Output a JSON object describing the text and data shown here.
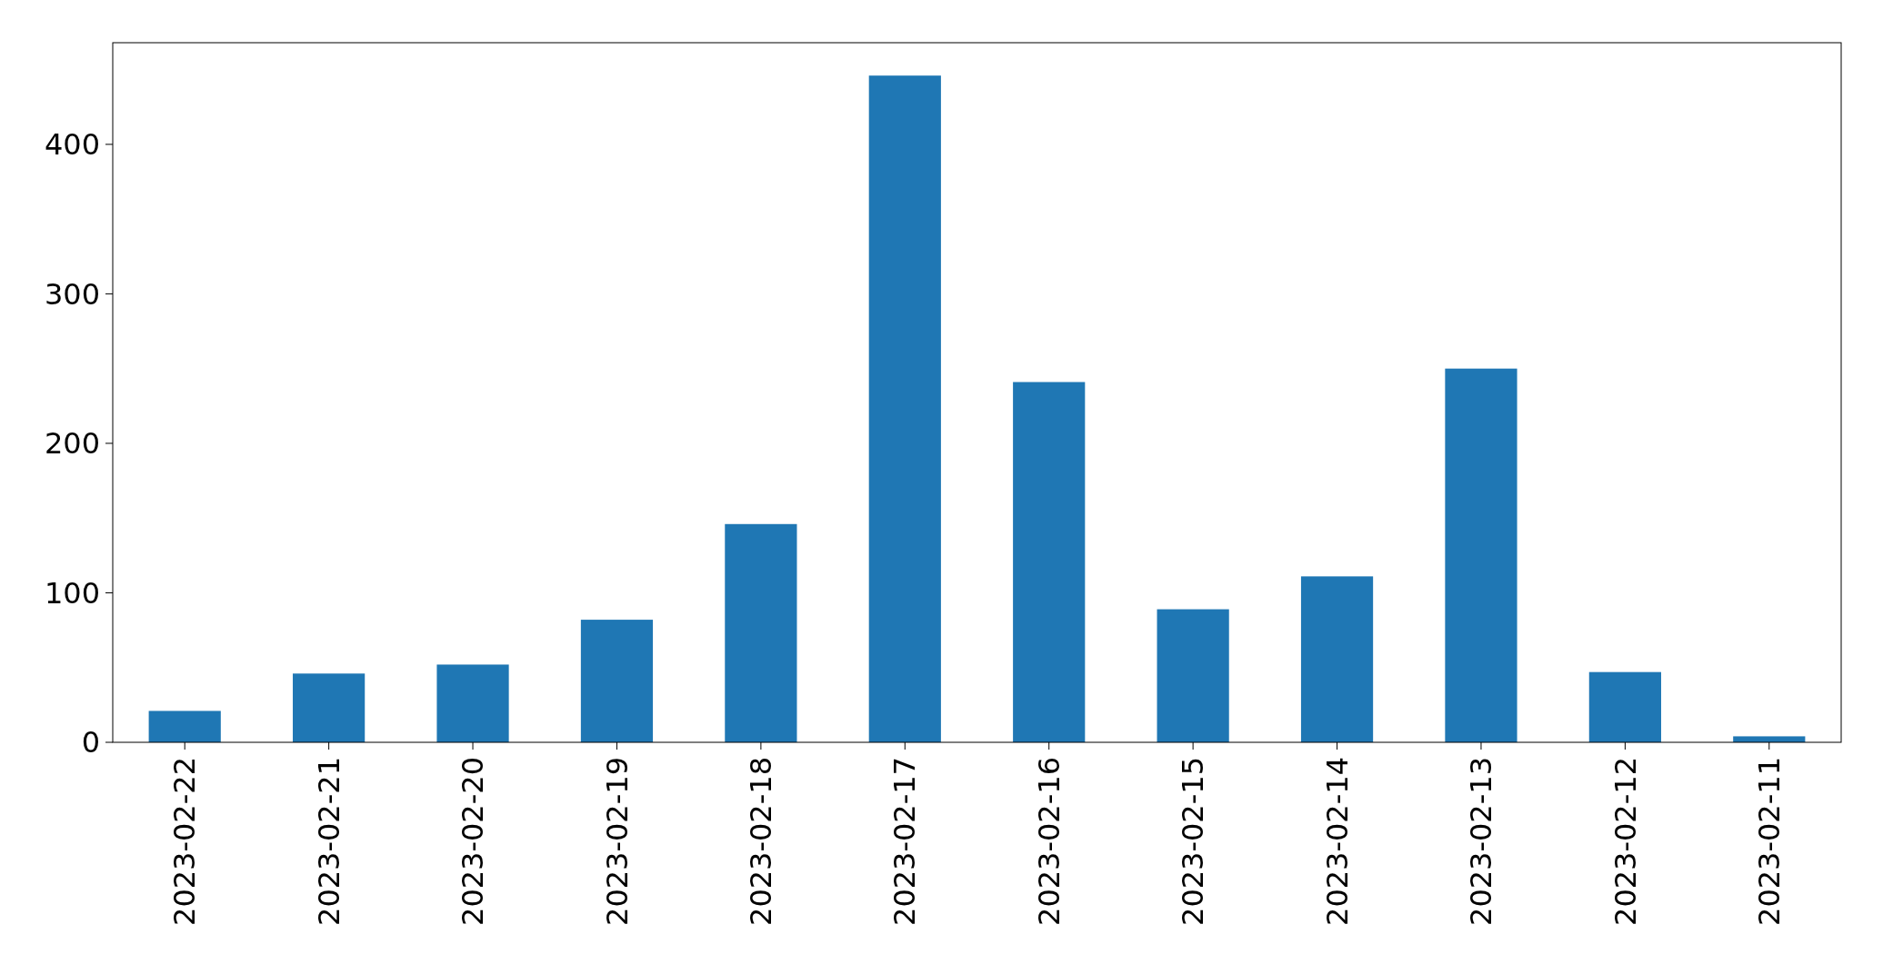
{
  "chart_data": {
    "type": "bar",
    "categories": [
      "2023-02-22",
      "2023-02-21",
      "2023-02-20",
      "2023-02-19",
      "2023-02-18",
      "2023-02-17",
      "2023-02-16",
      "2023-02-15",
      "2023-02-14",
      "2023-02-13",
      "2023-02-12",
      "2023-02-11"
    ],
    "values": [
      21,
      46,
      52,
      82,
      146,
      446,
      241,
      89,
      111,
      250,
      47,
      4
    ],
    "color": "#1f77b4",
    "ylim": [
      0,
      468
    ],
    "yticks": [
      0,
      100,
      200,
      300,
      400
    ],
    "grid": false
  }
}
